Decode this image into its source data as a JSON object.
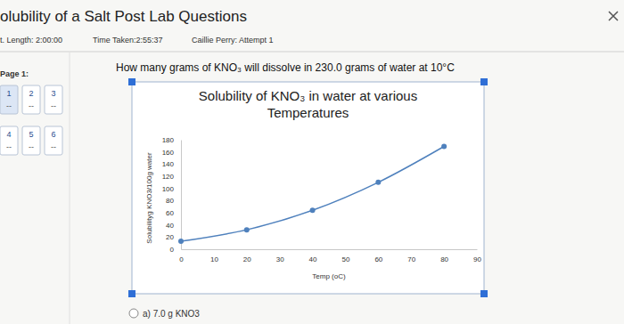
{
  "page": {
    "header_title": "olubility of a Salt Post Lab Questions",
    "length": "t. Length: 2:00:00",
    "time_taken": "Time Taken:2:55:37",
    "attempt": "Caillie Perry: Attempt 1",
    "page_label": "Page 1:",
    "questions": [
      {
        "number": "1",
        "status": "--"
      },
      {
        "number": "2",
        "status": "--"
      },
      {
        "number": "3",
        "status": "--"
      },
      {
        "number": "4",
        "status": "--"
      },
      {
        "number": "5",
        "status": "--"
      },
      {
        "number": "6",
        "status": "--"
      }
    ],
    "question": "How many grams of KNO₃ will dissolve in 230.0 grams of water at 10°C",
    "options": [
      "a) 7.0 g KNO3"
    ]
  },
  "chart_data": {
    "type": "line",
    "title": "Solubility of KNO₃ in water at various Temperatures",
    "x_label": "Temp (oC)",
    "y_label": "Solubilityg KNO3/100g water",
    "x": [
      0,
      20,
      40,
      60,
      80
    ],
    "values": [
      13,
      32,
      64,
      110,
      169
    ],
    "color": "#4f81bd",
    "marker": "circle",
    "xlim": [
      0,
      90
    ],
    "ylim": [
      0,
      180
    ],
    "xticks": [
      0,
      10,
      20,
      30,
      40,
      50,
      60,
      70,
      80,
      90
    ],
    "yticks": [
      0,
      20,
      40,
      60,
      80,
      100,
      120,
      140,
      160,
      180
    ],
    "grid": false
  }
}
